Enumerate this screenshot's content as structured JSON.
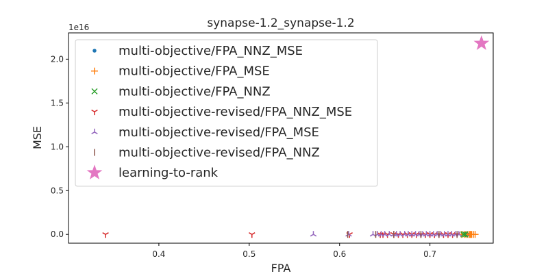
{
  "chart_data": {
    "type": "scatter",
    "title": "synapse-1.2_synapse-1.2",
    "xlabel": "FPA",
    "ylabel": "MSE",
    "y_offset_label": "1e16",
    "xlim": [
      0.3,
      0.77
    ],
    "ylim": [
      -1000000000000000.0,
      2.3e+16
    ],
    "x_ticks": [
      0.4,
      0.5,
      0.6,
      0.7
    ],
    "x_tick_labels": [
      "0.4",
      "0.5",
      "0.6",
      "0.7"
    ],
    "y_ticks": [
      0,
      5000000000000000.0,
      1e+16,
      1.5e+16,
      2e+16
    ],
    "y_tick_labels": [
      "0.0",
      "0.5",
      "1.0",
      "1.5",
      "2.0"
    ],
    "grid": false,
    "legend_position": "upper-left",
    "series": [
      {
        "name": "multi-objective/FPA_NNZ_MSE",
        "marker": "dot",
        "color": "#1f77b4",
        "x": [
          0.74,
          0.742
        ],
        "y": [
          0,
          0
        ]
      },
      {
        "name": "multi-objective/FPA_MSE",
        "marker": "plus",
        "color": "#ff7f0e",
        "x": [
          0.735,
          0.738,
          0.74,
          0.742,
          0.744,
          0.745,
          0.746,
          0.748,
          0.75
        ],
        "y": [
          0,
          0,
          0,
          0,
          0,
          0,
          0,
          0,
          0
        ]
      },
      {
        "name": "multi-objective/FPA_NNZ",
        "marker": "x",
        "color": "#2ca02c",
        "x": [
          0.737,
          0.739
        ],
        "y": [
          0,
          0
        ]
      },
      {
        "name": "multi-objective-revised/FPA_NNZ_MSE",
        "marker": "tri_down",
        "color": "#d62728",
        "x": [
          0.341,
          0.503,
          0.611,
          0.645,
          0.648,
          0.653,
          0.66,
          0.665,
          0.67,
          0.675,
          0.68,
          0.685,
          0.69,
          0.695,
          0.7,
          0.705,
          0.71,
          0.715,
          0.72,
          0.725,
          0.73
        ],
        "y": [
          0,
          0,
          0,
          0,
          0,
          0,
          0,
          0,
          0,
          0,
          0,
          0,
          0,
          0,
          0,
          0,
          0,
          0,
          0,
          0,
          0
        ]
      },
      {
        "name": "multi-objective-revised/FPA_MSE",
        "marker": "tri_up",
        "color": "#9467bd",
        "x": [
          0.571,
          0.61,
          0.637,
          0.642,
          0.646,
          0.65,
          0.655,
          0.66,
          0.663,
          0.667,
          0.672,
          0.676,
          0.68,
          0.684,
          0.688,
          0.692,
          0.696,
          0.7,
          0.704,
          0.708,
          0.712,
          0.716,
          0.72,
          0.724,
          0.728,
          0.732
        ],
        "y": [
          0,
          0,
          0,
          0,
          0,
          0,
          0,
          0,
          0,
          0,
          0,
          0,
          0,
          0,
          0,
          0,
          0,
          0,
          0,
          0,
          0,
          0,
          0,
          0,
          0,
          0
        ]
      },
      {
        "name": "multi-objective-revised/FPA_NNZ",
        "marker": "vline",
        "color": "#8c564b",
        "x": [
          0.609,
          0.64,
          0.66,
          0.69,
          0.71,
          0.73
        ],
        "y": [
          0,
          0,
          0,
          0,
          0,
          0
        ]
      },
      {
        "name": "learning-to-rank",
        "marker": "star",
        "color": "#e377c2",
        "x": [
          0.757
        ],
        "y": [
          2.18e+16
        ]
      }
    ]
  }
}
